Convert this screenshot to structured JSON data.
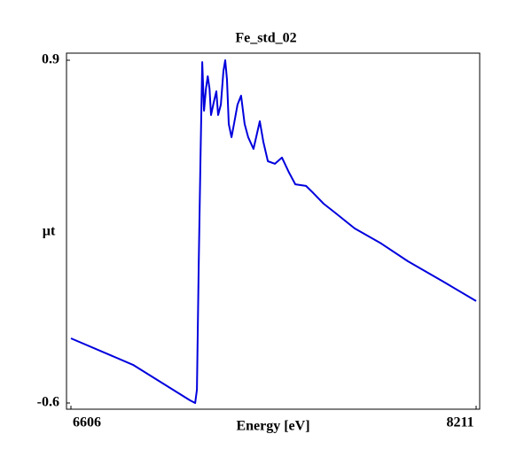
{
  "chart_data": {
    "type": "line",
    "title": "Fe_std_02",
    "x_label": "Energy [eV]",
    "y_label": "µt",
    "x": [
      6606,
      6852,
      7077,
      7098,
      7105,
      7112,
      7119,
      7126,
      7133,
      7141,
      7148,
      7155,
      7161,
      7172,
      7182,
      7189,
      7200,
      7210,
      7217,
      7224,
      7231,
      7242,
      7252,
      7266,
      7280,
      7294,
      7308,
      7329,
      7354,
      7368,
      7386,
      7414,
      7442,
      7470,
      7495,
      7537,
      7566,
      7607,
      7660,
      7730,
      7835,
      7941,
      8081,
      8211
    ],
    "series": [
      {
        "name": "Fe_std_02",
        "color": "#0000dd",
        "values": [
          -0.317,
          -0.433,
          -0.588,
          -0.6,
          -0.542,
          0.001,
          0.466,
          0.892,
          0.679,
          0.776,
          0.83,
          0.776,
          0.66,
          0.718,
          0.764,
          0.66,
          0.706,
          0.853,
          0.9,
          0.815,
          0.621,
          0.563,
          0.621,
          0.706,
          0.745,
          0.621,
          0.563,
          0.512,
          0.633,
          0.543,
          0.458,
          0.447,
          0.474,
          0.408,
          0.357,
          0.35,
          0.319,
          0.272,
          0.226,
          0.164,
          0.098,
          0.02,
          -0.069,
          -0.154
        ]
      }
    ],
    "xlim": [
      6606,
      8211
    ],
    "xticks": [
      6606,
      8211
    ],
    "ylim": [
      -0.6,
      0.9
    ],
    "yticks": [
      -0.6,
      0.9
    ]
  }
}
